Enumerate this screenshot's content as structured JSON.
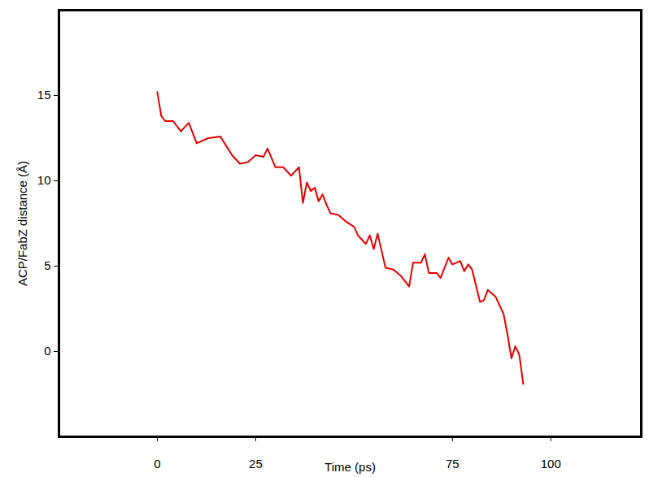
{
  "chart_data": {
    "type": "line",
    "x_label": "Time (ps)",
    "y_label": "ACP/FabZ distance (Å)",
    "xlim": [
      -25,
      123
    ],
    "ylim": [
      -5,
      20
    ],
    "xticks": [
      0,
      25,
      75,
      100
    ],
    "yticks": [
      0,
      5,
      10,
      15
    ],
    "grid": false,
    "series": [
      {
        "name": "ACP/FabZ distance",
        "color": "#e00000",
        "x": [
          0,
          1,
          2,
          4,
          6,
          8,
          10,
          13,
          16,
          19,
          21,
          23,
          25,
          27,
          28,
          30,
          32,
          34,
          36,
          37,
          38,
          39,
          40,
          41,
          42,
          43,
          44,
          46,
          48,
          50,
          51,
          53,
          54,
          55,
          56,
          57,
          58,
          60,
          62,
          64,
          65,
          67,
          68,
          69,
          71,
          72,
          74,
          75,
          77,
          78,
          79,
          80,
          82,
          83,
          84,
          86,
          88,
          89,
          90,
          91,
          92,
          93
        ],
        "values": [
          15.2,
          13.8,
          13.5,
          13.5,
          12.9,
          13.4,
          12.2,
          12.5,
          12.6,
          11.5,
          11.0,
          11.1,
          11.5,
          11.4,
          11.9,
          10.8,
          10.8,
          10.3,
          10.8,
          8.7,
          9.9,
          9.4,
          9.6,
          8.8,
          9.2,
          8.6,
          8.1,
          8.0,
          7.6,
          7.3,
          6.8,
          6.3,
          6.8,
          6.0,
          6.9,
          5.9,
          4.9,
          4.8,
          4.4,
          3.8,
          5.2,
          5.2,
          5.7,
          4.6,
          4.6,
          4.3,
          5.5,
          5.1,
          5.3,
          4.7,
          5.1,
          4.8,
          2.9,
          3.0,
          3.6,
          3.2,
          2.2,
          1.0,
          -0.4,
          0.3,
          -0.2,
          -1.9
        ]
      }
    ]
  }
}
